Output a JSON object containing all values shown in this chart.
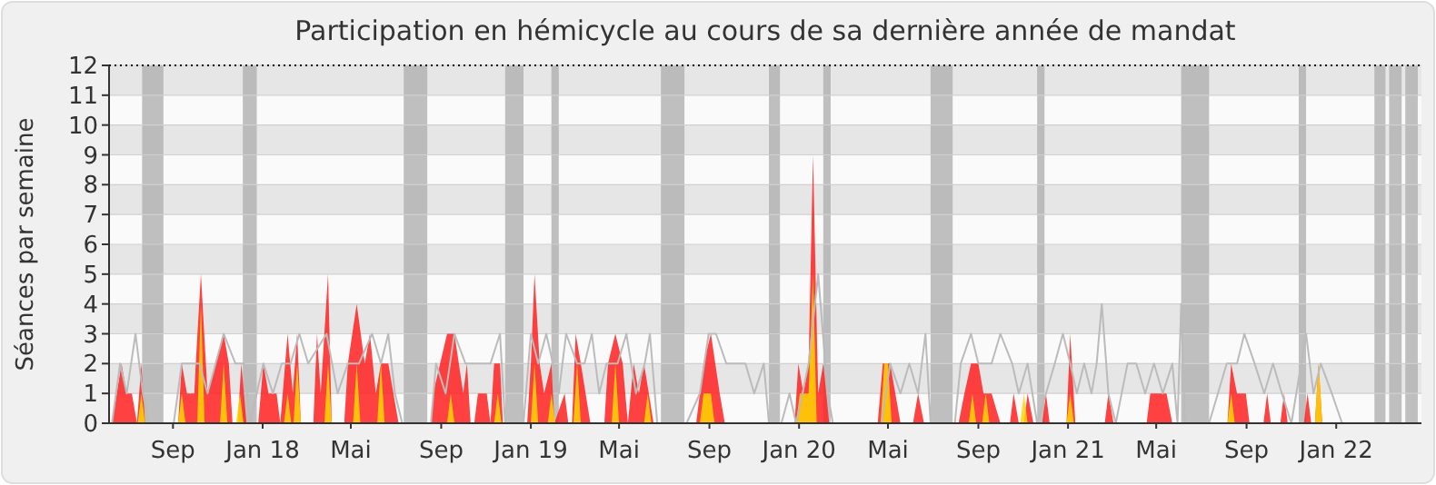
{
  "chart_data": {
    "type": "area",
    "title": "Participation en hémicycle au cours de sa dernière année de mandat",
    "ylabel": "Séances par semaine",
    "xlim": [
      "2017-06-20",
      "2022-05-11"
    ],
    "xticks": [
      {
        "value": "2017-09-15",
        "label": "Sep"
      },
      {
        "value": "2018-01-15",
        "label": "Jan 18"
      },
      {
        "value": "2018-05-15",
        "label": "Mai"
      },
      {
        "value": "2018-09-15",
        "label": "Sep"
      },
      {
        "value": "2019-01-15",
        "label": "Jan 19"
      },
      {
        "value": "2019-05-15",
        "label": "Mai"
      },
      {
        "value": "2019-09-15",
        "label": "Sep"
      },
      {
        "value": "2020-01-15",
        "label": "Jan 20"
      },
      {
        "value": "2020-05-15",
        "label": "Mai"
      },
      {
        "value": "2020-09-15",
        "label": "Sep"
      },
      {
        "value": "2021-01-15",
        "label": "Jan 21"
      },
      {
        "value": "2021-05-15",
        "label": "Mai"
      },
      {
        "value": "2021-09-15",
        "label": "Sep"
      },
      {
        "value": "2022-01-15",
        "label": "Jan 22"
      }
    ],
    "ylim": [
      0,
      12
    ],
    "yticks": [
      0,
      1,
      2,
      3,
      4,
      5,
      6,
      7,
      8,
      9,
      10,
      11,
      12
    ],
    "grid": "y",
    "series": [
      {
        "type": "line",
        "color": "#bbbbbb",
        "x": [
          "2017-06-24",
          "2017-07-05",
          "2017-07-14",
          "2017-07-26",
          "2017-08-05",
          "2017-08-13",
          "2017-09-16",
          "2017-09-27",
          "2017-10-21",
          "2017-11-01",
          "2017-11-23",
          "2017-12-09",
          "2017-12-21",
          "2017-12-29",
          "2018-01-16",
          "2018-01-29",
          "2018-02-10",
          "2018-02-22",
          "2018-03-06",
          "2018-03-18",
          "2018-04-12",
          "2018-04-27",
          "2018-05-11",
          "2018-05-26",
          "2018-06-13",
          "2018-06-25",
          "2018-07-05",
          "2018-07-14",
          "2018-07-24",
          "2018-09-01",
          "2018-09-08",
          "2018-09-21",
          "2018-10-03",
          "2018-10-18",
          "2018-10-28",
          "2018-11-21",
          "2018-12-04",
          "2018-12-11",
          "2019-01-05",
          "2019-01-15",
          "2019-01-25",
          "2019-02-05",
          "2019-02-14",
          "2019-02-22",
          "2019-03-04",
          "2019-03-19",
          "2019-03-29",
          "2019-04-08",
          "2019-04-18",
          "2019-04-28",
          "2019-05-13",
          "2019-05-25",
          "2019-06-07",
          "2019-06-19",
          "2019-06-26",
          "2019-07-06",
          "2019-08-15",
          "2019-09-02",
          "2019-09-14",
          "2019-09-24",
          "2019-10-08",
          "2019-11-03",
          "2019-11-15",
          "2019-11-28",
          "2019-12-05",
          "2019-12-22",
          "2020-01-02",
          "2020-01-11",
          "2020-01-28",
          "2020-02-10",
          "2020-02-23",
          "2020-03-01",
          "2020-05-06",
          "2020-05-18",
          "2020-06-01",
          "2020-06-13",
          "2020-06-25",
          "2020-07-05",
          "2020-07-12",
          "2020-08-14",
          "2020-08-22",
          "2020-09-05",
          "2020-09-15",
          "2020-10-03",
          "2020-10-15",
          "2020-10-31",
          "2020-11-09",
          "2020-11-21",
          "2020-12-04",
          "2020-12-16",
          "2020-12-28",
          "2021-01-08",
          "2021-01-18",
          "2021-01-27",
          "2021-02-06",
          "2021-02-16",
          "2021-02-23",
          "2021-03-02",
          "2021-03-11",
          "2021-03-21",
          "2021-04-06",
          "2021-04-18",
          "2021-04-30",
          "2021-05-12",
          "2021-05-24",
          "2021-06-06",
          "2021-06-13",
          "2021-06-18",
          "2021-06-23",
          "2021-07-26",
          "2021-08-07",
          "2021-08-19",
          "2021-09-02",
          "2021-09-12",
          "2021-09-26",
          "2021-10-09",
          "2021-10-21",
          "2021-11-02",
          "2021-11-15",
          "2021-12-05",
          "2021-12-15",
          "2021-12-25",
          "2022-01-09",
          "2022-01-23",
          "2022-05-11"
        ],
        "values": [
          0,
          2,
          1,
          3,
          1,
          0,
          0,
          2,
          2,
          1,
          3,
          2,
          2,
          0,
          2,
          1,
          2,
          2,
          3,
          2,
          3,
          1,
          2,
          2,
          3,
          2,
          3,
          1,
          0,
          0,
          2,
          1,
          3,
          2,
          2,
          2,
          3,
          0,
          0,
          3,
          2,
          3,
          2,
          1,
          3,
          2,
          2,
          3,
          1,
          2,
          2,
          3,
          1,
          2,
          3,
          0,
          0,
          1,
          3,
          3,
          2,
          2,
          1,
          2,
          0,
          0,
          1,
          0,
          2,
          5,
          1,
          0,
          0,
          2,
          1,
          2,
          1,
          3,
          0,
          0,
          2,
          3,
          2,
          2,
          3,
          2,
          1,
          2,
          0,
          1,
          2,
          3,
          2,
          1,
          2,
          1,
          2,
          4,
          1,
          0,
          2,
          2,
          1,
          2,
          1,
          2,
          0,
          4,
          0,
          0,
          1,
          2,
          2,
          3,
          2,
          1,
          2,
          1,
          0,
          3,
          1,
          2,
          1,
          0,
          0
        ]
      },
      {
        "type": "area",
        "color": "#ff2020",
        "x": [
          "2017-06-24",
          "2017-07-07",
          "2017-07-14",
          "2017-07-21",
          "2017-07-28",
          "2017-08-03",
          "2017-08-08",
          "2017-09-22",
          "2017-09-27",
          "2017-10-04",
          "2017-10-14",
          "2017-10-16",
          "2017-10-23",
          "2017-11-01",
          "2017-11-23",
          "2017-11-30",
          "2017-12-05",
          "2017-12-12",
          "2017-12-17",
          "2017-12-24",
          "2018-01-09",
          "2018-01-16",
          "2018-01-23",
          "2018-02-03",
          "2018-02-08",
          "2018-02-18",
          "2018-02-25",
          "2018-03-03",
          "2018-03-08",
          "2018-03-25",
          "2018-03-30",
          "2018-04-04",
          "2018-04-09",
          "2018-04-14",
          "2018-04-19",
          "2018-05-01",
          "2018-05-06",
          "2018-05-11",
          "2018-05-23",
          "2018-06-03",
          "2018-06-10",
          "2018-06-18",
          "2018-06-25",
          "2018-07-05",
          "2018-07-12",
          "2018-07-19",
          "2018-09-01",
          "2018-09-04",
          "2018-09-23",
          "2018-10-03",
          "2018-10-15",
          "2018-10-20",
          "2018-10-25",
          "2018-10-30",
          "2018-11-04",
          "2018-11-16",
          "2018-11-21",
          "2018-11-26",
          "2018-12-04",
          "2018-12-08",
          "2019-01-05",
          "2019-01-10",
          "2019-01-15",
          "2019-01-20",
          "2019-01-27",
          "2019-02-02",
          "2019-02-12",
          "2019-02-16",
          "2019-03-02",
          "2019-03-07",
          "2019-03-12",
          "2019-03-17",
          "2019-03-24",
          "2019-04-06",
          "2019-04-25",
          "2019-04-30",
          "2019-05-10",
          "2019-05-20",
          "2019-05-27",
          "2019-06-04",
          "2019-06-11",
          "2019-06-18",
          "2019-07-01",
          "2019-08-28",
          "2019-09-07",
          "2019-09-17",
          "2019-09-29",
          "2019-10-06",
          "2020-01-04",
          "2020-01-09",
          "2020-01-14",
          "2020-01-21",
          "2020-01-28",
          "2020-02-03",
          "2020-02-10",
          "2020-02-17",
          "2020-02-25",
          "2020-05-01",
          "2020-05-08",
          "2020-05-18",
          "2020-06-01",
          "2020-06-18",
          "2020-06-25",
          "2020-07-03",
          "2020-08-19",
          "2020-08-27",
          "2020-09-05",
          "2020-09-15",
          "2020-09-22",
          "2020-10-03",
          "2020-10-15",
          "2020-10-28",
          "2020-11-02",
          "2020-11-09",
          "2020-11-16",
          "2020-11-21",
          "2020-11-29",
          "2020-12-11",
          "2020-12-16",
          "2020-12-21",
          "2021-01-13",
          "2021-01-18",
          "2021-01-25",
          "2021-03-06",
          "2021-03-11",
          "2021-03-18",
          "2021-05-02",
          "2021-05-07",
          "2021-05-29",
          "2021-06-06",
          "2021-08-20",
          "2021-08-25",
          "2021-09-02",
          "2021-09-14",
          "2021-09-19",
          "2021-10-08",
          "2021-10-13",
          "2021-10-18",
          "2021-10-31",
          "2021-11-05",
          "2021-11-10",
          "2021-12-02",
          "2021-12-07",
          "2021-12-12",
          "2021-12-17",
          "2021-12-22",
          "2021-12-27"
        ],
        "values": [
          0,
          2,
          1,
          1,
          0,
          2,
          0,
          0,
          2,
          1,
          1,
          2,
          5,
          1,
          3,
          2,
          0,
          0,
          2,
          0,
          0,
          2,
          1,
          1,
          0,
          3,
          1,
          3,
          0,
          0,
          3,
          1,
          3,
          5,
          0,
          0,
          0,
          2,
          4,
          2,
          3,
          1,
          2,
          2,
          1,
          0,
          0,
          1,
          3,
          3,
          1,
          2,
          0,
          0,
          1,
          1,
          0,
          2,
          2,
          0,
          0,
          0,
          2,
          5,
          2,
          1,
          2,
          0,
          1,
          0,
          0,
          3,
          2,
          0,
          0,
          2,
          3,
          2,
          0,
          2,
          1,
          2,
          0,
          0,
          2,
          3,
          1,
          0,
          0,
          0,
          2,
          1,
          2,
          9,
          1,
          2,
          0,
          0,
          2,
          2,
          0,
          0,
          1,
          0,
          0,
          1,
          2,
          2,
          1,
          1,
          0,
          0,
          1,
          0,
          0,
          1,
          0,
          0,
          1,
          0,
          0,
          3,
          0,
          0,
          1,
          0,
          0,
          1,
          1,
          0,
          0,
          2,
          1,
          1,
          0,
          0,
          1,
          0,
          0,
          1,
          0,
          0,
          1,
          0,
          0,
          2,
          0
        ]
      },
      {
        "type": "area",
        "color": "#ffd700",
        "x": [
          "2017-07-29",
          "2017-08-03",
          "2017-08-08",
          "2017-09-22",
          "2017-09-27",
          "2017-10-02",
          "2017-10-18",
          "2017-10-23",
          "2017-10-28",
          "2017-11-18",
          "2017-11-23",
          "2017-11-28",
          "2017-12-10",
          "2017-12-15",
          "2017-12-20",
          "2018-02-13",
          "2018-02-18",
          "2018-02-23",
          "2018-02-26",
          "2018-03-03",
          "2018-03-08",
          "2018-04-09",
          "2018-04-14",
          "2018-04-19",
          "2018-05-18",
          "2018-05-23",
          "2018-05-28",
          "2018-06-20",
          "2018-06-25",
          "2018-06-30",
          "2018-09-23",
          "2018-09-28",
          "2018-10-03",
          "2018-11-26",
          "2018-12-01",
          "2018-12-06",
          "2019-01-15",
          "2019-01-20",
          "2019-01-25",
          "2019-02-07",
          "2019-02-12",
          "2019-02-17",
          "2019-03-14",
          "2019-03-19",
          "2019-03-24",
          "2019-05-05",
          "2019-05-10",
          "2019-05-15",
          "2019-06-18",
          "2019-06-23",
          "2019-06-28",
          "2019-09-02",
          "2019-09-07",
          "2019-09-17",
          "2019-09-22",
          "2020-01-11",
          "2020-01-16",
          "2020-01-28",
          "2020-02-03",
          "2020-02-08",
          "2020-05-05",
          "2020-05-10",
          "2020-05-15",
          "2020-05-20",
          "2020-09-02",
          "2020-09-07",
          "2020-09-12",
          "2020-09-20",
          "2020-09-25",
          "2020-09-30",
          "2020-11-11",
          "2020-11-16",
          "2020-11-21",
          "2021-01-13",
          "2021-01-18",
          "2021-01-23",
          "2021-08-20",
          "2021-08-25",
          "2021-08-30",
          "2021-12-17",
          "2021-12-22",
          "2021-12-27"
        ],
        "values": [
          0,
          1,
          0,
          0,
          1,
          0,
          0,
          4,
          0,
          0,
          2,
          0,
          0,
          1,
          0,
          0,
          1,
          0,
          0,
          2,
          0,
          0,
          2,
          0,
          0,
          2,
          0,
          0,
          2,
          0,
          0,
          1,
          0,
          0,
          1,
          0,
          0,
          2,
          0,
          0,
          1,
          0,
          0,
          2,
          0,
          0,
          2,
          0,
          0,
          1,
          0,
          0,
          1,
          1,
          0,
          0,
          1,
          1,
          5,
          0,
          0,
          2,
          2,
          0,
          0,
          1,
          0,
          0,
          1,
          0,
          0,
          1,
          0,
          0,
          1,
          0,
          0,
          1,
          0,
          0,
          2,
          0
        ]
      }
    ],
    "bands": [
      {
        "axis": "x",
        "from": "2017-08-04",
        "to": "2017-09-02",
        "color": "#b0b0b0"
      },
      {
        "axis": "x",
        "from": "2017-12-19",
        "to": "2018-01-07",
        "color": "#b0b0b0"
      },
      {
        "axis": "x",
        "from": "2018-07-26",
        "to": "2018-08-27",
        "color": "#b0b0b0"
      },
      {
        "axis": "x",
        "from": "2018-12-11",
        "to": "2019-01-05",
        "color": "#b0b0b0"
      },
      {
        "axis": "x",
        "from": "2019-02-12",
        "to": "2019-02-22",
        "color": "#b0b0b0"
      },
      {
        "axis": "x",
        "from": "2019-07-11",
        "to": "2019-08-12",
        "color": "#b0b0b0"
      },
      {
        "axis": "x",
        "from": "2019-12-05",
        "to": "2019-12-20",
        "color": "#b0b0b0"
      },
      {
        "axis": "x",
        "from": "2020-02-17",
        "to": "2020-02-27",
        "color": "#b0b0b0"
      },
      {
        "axis": "x",
        "from": "2020-07-12",
        "to": "2020-08-11",
        "color": "#b0b0b0"
      },
      {
        "axis": "x",
        "from": "2020-12-04",
        "to": "2020-12-14",
        "color": "#b0b0b0"
      },
      {
        "axis": "x",
        "from": "2021-06-18",
        "to": "2021-07-26",
        "color": "#b0b0b0"
      },
      {
        "axis": "x",
        "from": "2021-11-25",
        "to": "2021-12-05",
        "color": "#b0b0b0"
      },
      {
        "axis": "x",
        "from": "2022-03-08",
        "to": "2022-03-23",
        "color": "#b0b0b0"
      },
      {
        "axis": "x",
        "from": "2022-03-28",
        "to": "2022-04-14",
        "color": "#b0b0b0"
      },
      {
        "axis": "x",
        "from": "2022-04-19",
        "to": "2022-05-06",
        "color": "#b0b0b0"
      }
    ],
    "ref_lines": [
      {
        "axis": "y",
        "value": 12,
        "color": "#000000",
        "line_style": "dotted"
      }
    ]
  }
}
